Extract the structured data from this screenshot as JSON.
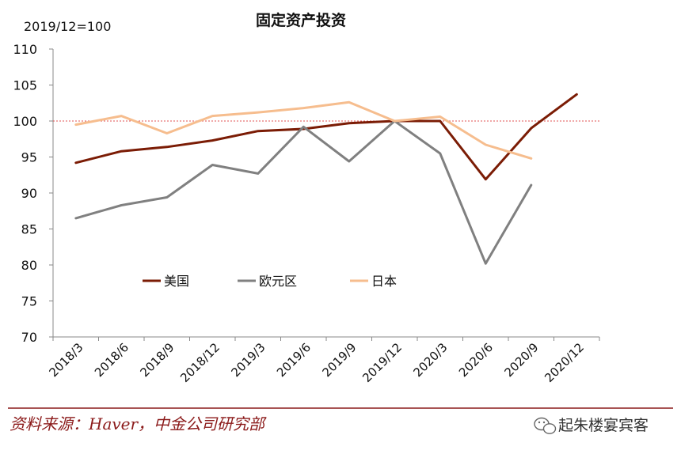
{
  "chart_data": {
    "type": "line",
    "title": "固定资产投资",
    "unit_label": "2019/12=100",
    "categories": [
      "2018/3",
      "2018/6",
      "2018/9",
      "2018/12",
      "2019/3",
      "2019/6",
      "2019/9",
      "2019/12",
      "2020/3",
      "2020/6",
      "2020/9",
      "2020/12"
    ],
    "ylim": [
      70,
      110
    ],
    "yticks": [
      70,
      75,
      80,
      85,
      90,
      95,
      100,
      105,
      110
    ],
    "reference_line": 100,
    "legend_position": "center",
    "series": [
      {
        "name": "美国",
        "color": "#7b1c05",
        "values": [
          94.2,
          95.8,
          96.4,
          97.3,
          98.6,
          98.9,
          99.7,
          100.0,
          100.0,
          91.9,
          99.0,
          103.7
        ]
      },
      {
        "name": "欧元区",
        "color": "#808080",
        "values": [
          86.5,
          88.3,
          89.4,
          93.9,
          92.7,
          99.2,
          94.4,
          100.0,
          95.5,
          80.2,
          91.1,
          null
        ]
      },
      {
        "name": "日本",
        "color": "#f6bd8e",
        "values": [
          99.5,
          100.7,
          98.3,
          100.7,
          101.2,
          101.8,
          102.6,
          100.0,
          100.6,
          96.7,
          94.8,
          null
        ]
      }
    ]
  },
  "footer": {
    "source": "资料来源：Haver，中金公司研究部",
    "watermark": "起朱楼宴宾客",
    "watermark_icon": "wechat-icon"
  }
}
